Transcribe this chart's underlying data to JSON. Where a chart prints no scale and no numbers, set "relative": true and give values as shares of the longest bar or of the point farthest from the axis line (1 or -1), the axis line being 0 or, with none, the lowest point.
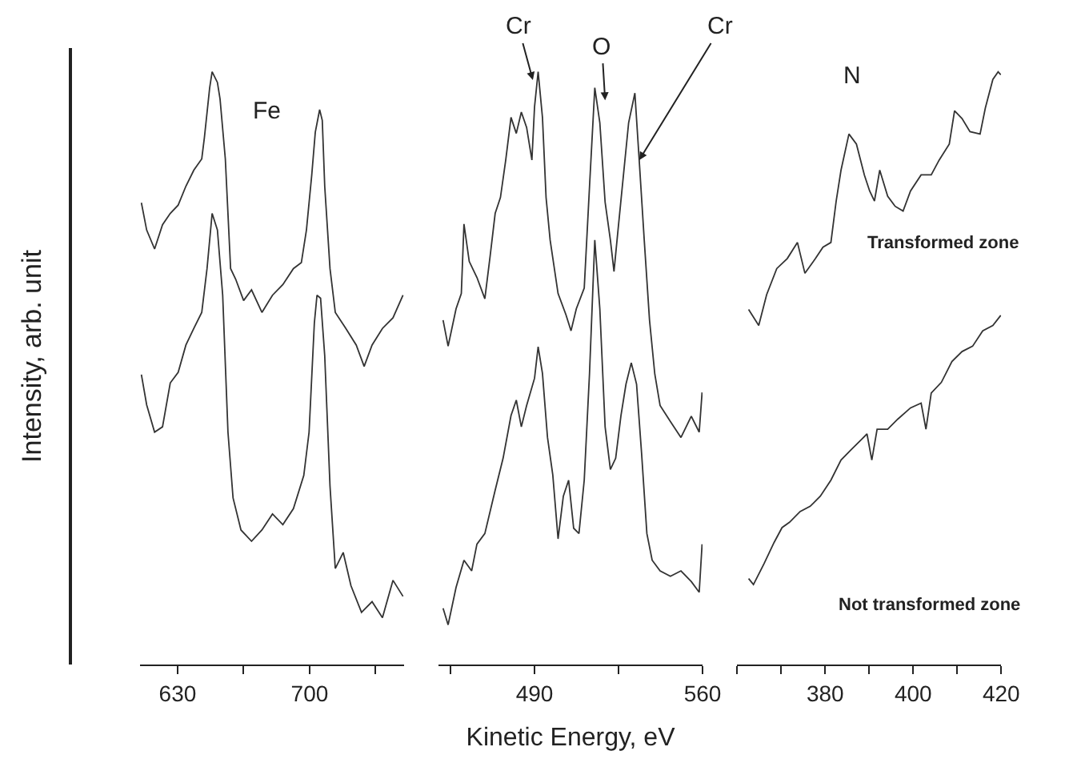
{
  "chart_data": [
    {
      "type": "line",
      "relative": true,
      "ylabel": "Intensity, arb. unit",
      "xlim": [
        610,
        750
      ],
      "xticks": [
        630,
        700
      ],
      "tick_labels": "x",
      "series": [
        {
          "color": "#333333",
          "x": [
            610.8,
            613.6,
            617.8,
            622,
            626.1,
            630.3,
            634.4,
            638.6,
            642.8,
            644.2,
            647,
            648.3,
            651.1,
            652.5,
            655.3,
            658.1,
            660.8,
            665,
            669.2,
            674.7,
            680.3,
            685.8,
            691.4,
            695.6,
            698.3,
            701.1,
            703,
            705.3,
            706.7,
            708,
            710.8,
            713.6,
            719.2,
            724.7,
            728.9,
            733.1,
            738.6,
            744.2,
            749.5
          ],
          "values": [
            0.779,
            0.733,
            0.701,
            0.742,
            0.761,
            0.775,
            0.807,
            0.834,
            0.853,
            0.889,
            0.973,
            1.0,
            0.982,
            0.954,
            0.853,
            0.668,
            0.65,
            0.614,
            0.632,
            0.594,
            0.623,
            0.641,
            0.668,
            0.678,
            0.733,
            0.825,
            0.898,
            0.936,
            0.918,
            0.807,
            0.668,
            0.594,
            0.567,
            0.539,
            0.503,
            0.539,
            0.567,
            0.585,
            0.623
          ]
        },
        {
          "color": "#333333",
          "x": [
            610.8,
            613.6,
            617.8,
            622,
            626.1,
            630.3,
            634.4,
            638.6,
            642.8,
            645.6,
            648.3,
            651.1,
            653.9,
            656.7,
            659.4,
            663.6,
            669.2,
            674.7,
            680.3,
            685.8,
            691.4,
            696.9,
            699.7,
            702.5,
            703.9,
            705.8,
            708,
            710.8,
            713.6,
            717.8,
            721.9,
            727.5,
            733.1,
            738.6,
            744.2,
            749.5
          ],
          "values": [
            0.489,
            0.438,
            0.392,
            0.401,
            0.475,
            0.493,
            0.539,
            0.567,
            0.594,
            0.668,
            0.761,
            0.733,
            0.623,
            0.392,
            0.281,
            0.227,
            0.208,
            0.227,
            0.254,
            0.236,
            0.263,
            0.319,
            0.392,
            0.576,
            0.623,
            0.618,
            0.521,
            0.301,
            0.162,
            0.189,
            0.133,
            0.088,
            0.106,
            0.079,
            0.142,
            0.115
          ]
        }
      ],
      "annotations": [
        "Fe"
      ]
    },
    {
      "type": "line",
      "relative": true,
      "xlabel": "Kinetic Energy, eV",
      "xlim": [
        450,
        560
      ],
      "xticks": [
        490,
        560
      ],
      "tick_labels": "x",
      "series": [
        {
          "color": "#333333",
          "x": [
            451.9,
            454,
            457.3,
            459.5,
            460.6,
            462.8,
            466,
            469.3,
            471.5,
            473.6,
            475.8,
            478,
            480.2,
            482.4,
            484.5,
            486.7,
            488.9,
            490,
            491.5,
            493.3,
            494.8,
            496.5,
            499.8,
            503.1,
            505.2,
            507.4,
            510.7,
            512.9,
            515.1,
            517.2,
            519.4,
            521.6,
            523.1,
            524.8,
            527,
            529.2,
            531.8,
            533.6,
            535.7,
            537.9,
            540.1,
            542.3,
            546.6,
            551,
            555.3,
            558.6,
            559.8
          ],
          "values": [
            0.581,
            0.537,
            0.6,
            0.626,
            0.743,
            0.68,
            0.653,
            0.617,
            0.689,
            0.761,
            0.788,
            0.851,
            0.923,
            0.896,
            0.932,
            0.906,
            0.851,
            0.941,
            1.0,
            0.923,
            0.788,
            0.716,
            0.626,
            0.59,
            0.563,
            0.6,
            0.635,
            0.806,
            0.973,
            0.914,
            0.78,
            0.716,
            0.663,
            0.734,
            0.824,
            0.914,
            0.964,
            0.851,
            0.716,
            0.581,
            0.49,
            0.437,
            0.41,
            0.383,
            0.419,
            0.392,
            0.459
          ]
        },
        {
          "color": "#333333",
          "x": [
            451.9,
            454,
            457.3,
            460.6,
            463.8,
            466,
            469.3,
            473.6,
            476.9,
            480.2,
            482.4,
            484.5,
            486.7,
            490,
            491.5,
            493.3,
            495.4,
            497.6,
            499.8,
            502,
            504.2,
            506.3,
            508.5,
            510.7,
            512.9,
            515.1,
            517.2,
            519.4,
            521.6,
            523.8,
            526,
            528.1,
            530.3,
            532.5,
            534.6,
            536.8,
            539,
            542.3,
            546.6,
            551,
            555.3,
            558.6,
            559.8
          ],
          "values": [
            0.095,
            0.067,
            0.13,
            0.176,
            0.158,
            0.203,
            0.221,
            0.294,
            0.348,
            0.42,
            0.446,
            0.401,
            0.437,
            0.483,
            0.536,
            0.491,
            0.383,
            0.32,
            0.212,
            0.284,
            0.311,
            0.23,
            0.221,
            0.311,
            0.491,
            0.716,
            0.6,
            0.401,
            0.329,
            0.348,
            0.42,
            0.473,
            0.509,
            0.473,
            0.356,
            0.221,
            0.176,
            0.158,
            0.149,
            0.158,
            0.14,
            0.122,
            0.203
          ]
        }
      ],
      "annotations": [
        {
          "text": "Cr",
          "x": 489.3,
          "y": 0.986
        },
        {
          "text": "O",
          "x": 519.4,
          "y": 0.952
        },
        {
          "text": "Cr",
          "x": 533.6,
          "y": 0.851
        }
      ]
    },
    {
      "type": "line",
      "relative": true,
      "xlim": [
        360,
        420
      ],
      "xticks": [
        380,
        400,
        420
      ],
      "tick_labels": "x",
      "series": [
        {
          "color": "#333333",
          "x": [
            362.6,
            364.9,
            366.7,
            369,
            371.4,
            373.7,
            375.4,
            377.8,
            379.5,
            381.3,
            382.5,
            383.6,
            385.4,
            387.1,
            388.9,
            390.1,
            391.2,
            392.4,
            394.2,
            395.9,
            397.7,
            399.4,
            401.8,
            404.1,
            405.9,
            408.2,
            409.4,
            411.1,
            412.9,
            415.2,
            416.4,
            418.1,
            419.3,
            419.9
          ],
          "values": [
            0.599,
            0.572,
            0.624,
            0.668,
            0.685,
            0.712,
            0.66,
            0.685,
            0.704,
            0.712,
            0.782,
            0.834,
            0.895,
            0.878,
            0.826,
            0.799,
            0.782,
            0.834,
            0.79,
            0.773,
            0.765,
            0.799,
            0.826,
            0.826,
            0.851,
            0.878,
            0.934,
            0.921,
            0.899,
            0.895,
            0.939,
            0.987,
            1.0,
            0.995
          ]
        },
        {
          "color": "#333333",
          "x": [
            362.6,
            363.7,
            366.1,
            368.4,
            370.2,
            371.9,
            374.3,
            376.6,
            378.9,
            381.3,
            383.6,
            386,
            388.3,
            389.5,
            390.6,
            391.8,
            394.2,
            396.5,
            399.4,
            401.8,
            402.9,
            404.1,
            406.4,
            408.8,
            411.1,
            413.5,
            415.8,
            418.1,
            419.9
          ],
          "values": [
            0.145,
            0.135,
            0.17,
            0.206,
            0.231,
            0.24,
            0.258,
            0.267,
            0.284,
            0.311,
            0.345,
            0.363,
            0.38,
            0.389,
            0.345,
            0.397,
            0.397,
            0.414,
            0.433,
            0.441,
            0.397,
            0.458,
            0.476,
            0.511,
            0.528,
            0.537,
            0.563,
            0.572,
            0.589
          ]
        }
      ],
      "annotations": [
        "N",
        "Transformed zone",
        "Not transformed zone"
      ]
    }
  ]
}
